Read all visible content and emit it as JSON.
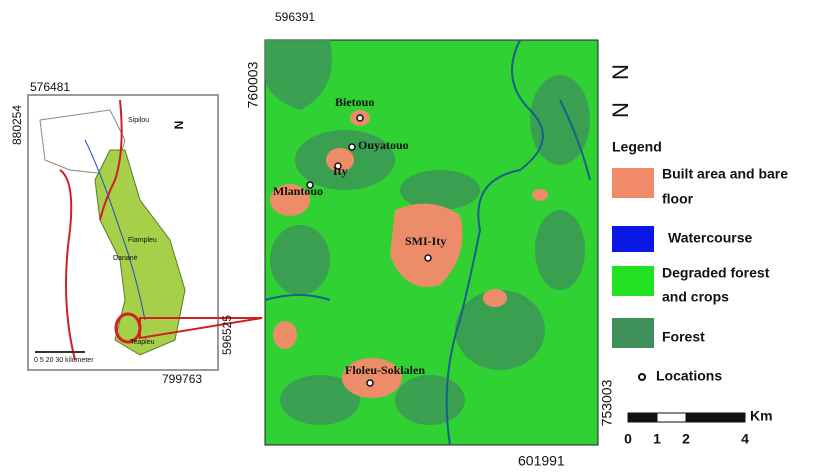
{
  "inset": {
    "coords": {
      "top": "576481",
      "left": "880254",
      "right": "596525",
      "bottom": "799763"
    },
    "places": [
      "Sipilou",
      "Flampleu",
      "Danané",
      "Teapleu"
    ],
    "scale_label": "0 5 20 30  kilometer"
  },
  "north": "N",
  "map": {
    "coords": {
      "top": "596391",
      "left": "760003",
      "right": "753003",
      "bottom": "601991"
    },
    "locations": [
      "Bietouo",
      "Ouyatouo",
      "Ity",
      "Mlantouo",
      "SMI-Ity",
      "Floleu-Soklalen"
    ]
  },
  "legend": {
    "title": "Legend",
    "items": [
      [
        "Built area and bare",
        "floor"
      ],
      [
        "Watercourse"
      ],
      [
        "Degraded forest",
        "and crops"
      ],
      [
        "Forest"
      ],
      [
        "Locations"
      ]
    ]
  },
  "scale_bar": {
    "ticks": [
      "0",
      "1",
      "2",
      "4"
    ],
    "unit": "Km"
  }
}
